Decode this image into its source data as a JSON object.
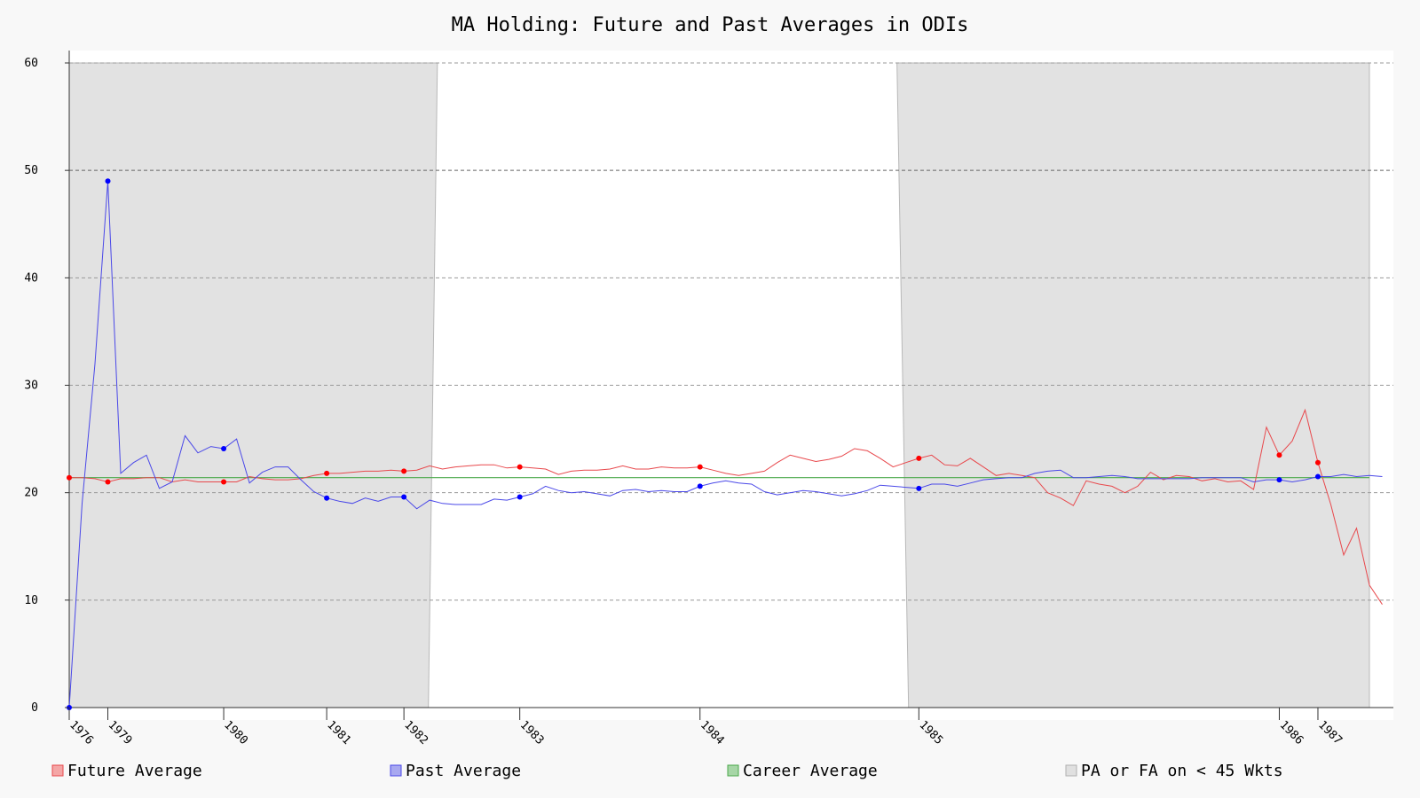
{
  "chart_data": {
    "type": "line",
    "title": "MA Holding: Future and Past Averages in ODIs",
    "ylim": [
      0,
      60
    ],
    "yticks": [
      0,
      10,
      20,
      30,
      40,
      50,
      60
    ],
    "grid": true,
    "legend_position": "bottom",
    "x_range": [
      0,
      101
    ],
    "x_tick_labels": [
      {
        "x": 0,
        "label": "1976"
      },
      {
        "x": 3,
        "label": "1979"
      },
      {
        "x": 12,
        "label": "1980"
      },
      {
        "x": 20,
        "label": "1981"
      },
      {
        "x": 26,
        "label": "1982"
      },
      {
        "x": 35,
        "label": "1983"
      },
      {
        "x": 49,
        "label": "1984"
      },
      {
        "x": 66,
        "label": "1985"
      },
      {
        "x": 94,
        "label": "1986"
      },
      {
        "x": 97,
        "label": "1987"
      }
    ],
    "career_average": 21.4,
    "shaded_regions": [
      {
        "x_start": 0,
        "x_end": 28.6,
        "x_end_bottom": 27.9
      },
      {
        "x_start": 64.3,
        "x_end": 101,
        "x_start_bottom": 65.2
      }
    ],
    "series": [
      {
        "name": "Future Average",
        "color": "#e8484c",
        "values": [
          21.4,
          21.4,
          21.3,
          21.0,
          21.3,
          21.3,
          21.4,
          21.4,
          21.0,
          21.2,
          21.0,
          21.0,
          21.0,
          21.0,
          21.5,
          21.3,
          21.2,
          21.2,
          21.3,
          21.6,
          21.8,
          21.8,
          21.9,
          22.0,
          22.0,
          22.1,
          22.0,
          22.1,
          22.5,
          22.2,
          22.4,
          22.5,
          22.6,
          22.6,
          22.3,
          22.4,
          22.3,
          22.2,
          21.7,
          22.0,
          22.1,
          22.1,
          22.2,
          22.5,
          22.2,
          22.2,
          22.4,
          22.3,
          22.3,
          22.4,
          22.1,
          21.8,
          21.6,
          21.8,
          22.0,
          22.8,
          23.5,
          23.2,
          22.9,
          23.1,
          23.4,
          24.1,
          23.9,
          23.2,
          22.4,
          22.8,
          23.2,
          23.5,
          22.6,
          22.5,
          23.2,
          22.4,
          21.6,
          21.8,
          21.6,
          21.4,
          20.0,
          19.5,
          18.8,
          21.1,
          20.8,
          20.6,
          20.0,
          20.6,
          21.9,
          21.2,
          21.6,
          21.5,
          21.1,
          21.3,
          21.0,
          21.1,
          20.3,
          26.1,
          23.5,
          24.8,
          27.7,
          22.8,
          18.9,
          14.2,
          16.7,
          11.4,
          9.6
        ]
      },
      {
        "name": "Past Average",
        "color": "#4a48e8",
        "values": [
          0.0,
          19.0,
          32.0,
          49.0,
          21.8,
          22.8,
          23.5,
          20.4,
          21.0,
          25.3,
          23.7,
          24.3,
          24.1,
          25.0,
          20.9,
          21.9,
          22.4,
          22.4,
          21.2,
          20.1,
          19.5,
          19.2,
          19.0,
          19.5,
          19.2,
          19.6,
          19.6,
          18.5,
          19.3,
          19.0,
          18.9,
          18.9,
          18.9,
          19.4,
          19.3,
          19.6,
          19.9,
          20.6,
          20.2,
          20.0,
          20.1,
          19.9,
          19.7,
          20.2,
          20.3,
          20.1,
          20.2,
          20.1,
          20.1,
          20.6,
          20.9,
          21.1,
          20.9,
          20.8,
          20.1,
          19.8,
          20.0,
          20.2,
          20.1,
          19.9,
          19.7,
          19.9,
          20.2,
          20.7,
          20.6,
          20.5,
          20.4,
          20.8,
          20.8,
          20.6,
          20.9,
          21.2,
          21.3,
          21.4,
          21.4,
          21.8,
          22.0,
          22.1,
          21.4,
          21.4,
          21.5,
          21.6,
          21.5,
          21.3,
          21.3,
          21.3,
          21.3,
          21.3,
          21.4,
          21.4,
          21.4,
          21.4,
          21.0,
          21.2,
          21.2,
          21.0,
          21.2,
          21.5,
          21.5,
          21.7,
          21.5,
          21.6,
          21.5
        ]
      }
    ],
    "markers": {
      "future": [
        0,
        3,
        12,
        20,
        26,
        35,
        49,
        66,
        94,
        97
      ],
      "past": [
        0,
        3,
        12,
        20,
        26,
        35,
        49,
        66,
        94,
        97
      ]
    }
  },
  "legend": [
    {
      "label": "Future Average",
      "fill": "#f4a6a6",
      "stroke": "#e8484c"
    },
    {
      "label": "Past Average",
      "fill": "#a8a8f0",
      "stroke": "#4a48e8"
    },
    {
      "label": "Career Average",
      "fill": "#a6d6a6",
      "stroke": "#4aa84a"
    },
    {
      "label": "PA or FA on < 45 Wkts",
      "fill": "#e0e0e0",
      "stroke": "#b0b0b0"
    }
  ],
  "colors": {
    "background": "#f8f8f8",
    "plot_background": "#ffffff",
    "shade": "#e2e2e2",
    "career": "#4aa84a",
    "marker_future": "#ff0000",
    "marker_past": "#0000ff"
  }
}
